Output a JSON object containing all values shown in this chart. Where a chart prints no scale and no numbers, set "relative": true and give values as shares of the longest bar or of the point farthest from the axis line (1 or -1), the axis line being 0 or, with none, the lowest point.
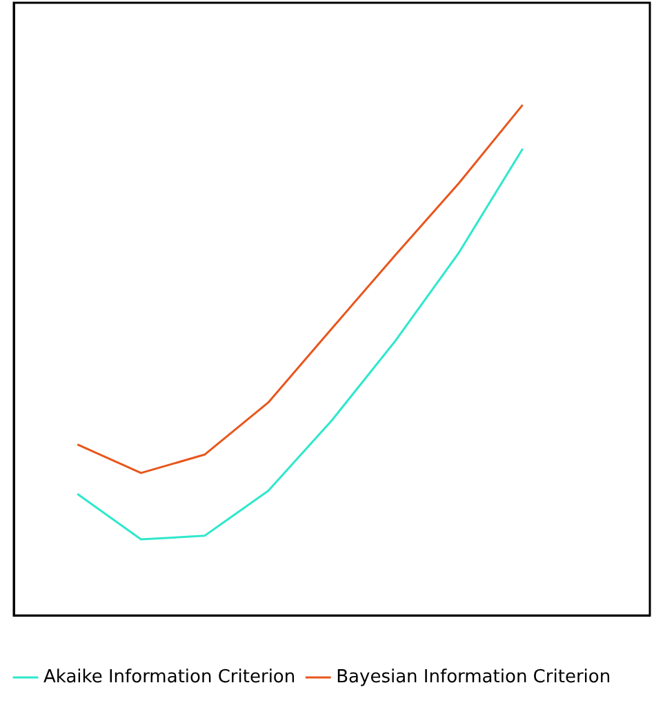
{
  "chart_data": {
    "type": "line",
    "relative": true,
    "categories": [
      null,
      null,
      null,
      null,
      null,
      null,
      null,
      null,
      null,
      null,
      null
    ],
    "legend": "bottom left",
    "marker": "none",
    "line_style": "solid",
    "series": [
      {
        "name": "Akaike Information Criterion",
        "color": "#2ee8cc",
        "values": [
          null,
          0.238,
          0.149,
          0.156,
          0.244,
          0.382,
          0.538,
          0.711,
          0.914,
          null,
          null
        ]
      },
      {
        "name": "Bayesian Information Criterion",
        "color": "#e8561c",
        "values": [
          null,
          0.335,
          0.279,
          0.315,
          0.417,
          0.562,
          0.706,
          0.847,
          1,
          null,
          null
        ]
      }
    ]
  }
}
